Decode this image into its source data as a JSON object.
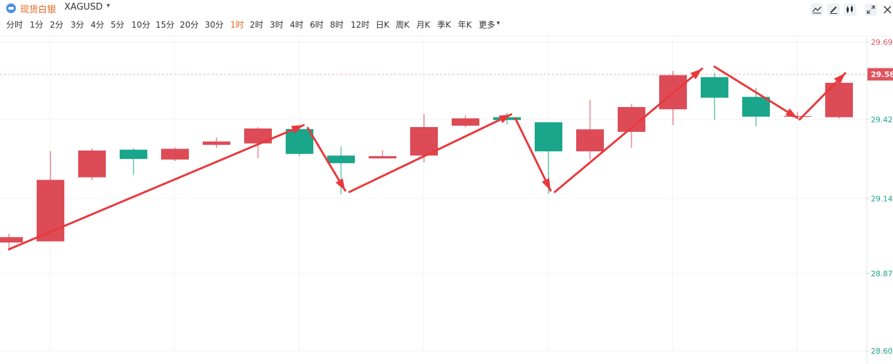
{
  "instrument": {
    "name": "现货白银",
    "symbol": "XAGUSD"
  },
  "toolbar": {
    "icons": [
      "line-tool-icon",
      "pen-tool-icon",
      "candlestick-icon",
      "expand-icon",
      "close-icon"
    ]
  },
  "periods": [
    "分时",
    "1分",
    "2分",
    "3分",
    "4分",
    "5分",
    "10分",
    "15分",
    "20分",
    "30分",
    "1时",
    "2时",
    "3时",
    "4时",
    "6时",
    "8时",
    "12时",
    "日K",
    "周K",
    "月K",
    "季K",
    "年K",
    "更多"
  ],
  "active_period": "1时",
  "colors": {
    "up": "#dd4b57",
    "down": "#1aa68a",
    "arrow": "#e8393c",
    "current_price_line": "#f4b5bb",
    "label_up": "#e0525c",
    "label_down": "#1aa68a"
  },
  "chart_data": {
    "type": "candlestick",
    "ylim": [
      28.6,
      29.694
    ],
    "y_ticks": [
      {
        "value": 29.694,
        "label": "29.694",
        "color": "up"
      },
      {
        "value": 29.42,
        "label": "29.42",
        "color": "down"
      },
      {
        "value": 29.14,
        "label": "29.14",
        "color": "down"
      },
      {
        "value": 28.874,
        "label": "28.874",
        "color": "down"
      },
      {
        "value": 28.6,
        "label": "28.60",
        "color": "down"
      }
    ],
    "current_price": {
      "value": 29.58,
      "label": "29.58"
    },
    "candles": [
      {
        "open": 28.984,
        "close": 29.003,
        "high": 29.015,
        "low": 28.955
      },
      {
        "open": 28.988,
        "close": 29.206,
        "high": 29.308,
        "low": 28.988
      },
      {
        "open": 29.215,
        "close": 29.31,
        "high": 29.318,
        "low": 29.205
      },
      {
        "open": 29.313,
        "close": 29.28,
        "high": 29.318,
        "low": 29.223
      },
      {
        "open": 29.278,
        "close": 29.316,
        "high": 29.321,
        "low": 29.272
      },
      {
        "open": 29.33,
        "close": 29.342,
        "high": 29.357,
        "low": 29.319
      },
      {
        "open": 29.335,
        "close": 29.388,
        "high": 29.393,
        "low": 29.282
      },
      {
        "open": 29.386,
        "close": 29.298,
        "high": 29.386,
        "low": 29.291
      },
      {
        "open": 29.292,
        "close": 29.265,
        "high": 29.324,
        "low": 29.155
      },
      {
        "open": 29.282,
        "close": 29.29,
        "high": 29.31,
        "low": 29.282
      },
      {
        "open": 29.292,
        "close": 29.393,
        "high": 29.44,
        "low": 29.268
      },
      {
        "open": 29.398,
        "close": 29.424,
        "high": 29.434,
        "low": 29.392
      },
      {
        "open": 29.428,
        "close": 29.418,
        "high": 29.444,
        "low": 29.402
      },
      {
        "open": 29.41,
        "close": 29.307,
        "high": 29.41,
        "low": 29.157
      },
      {
        "open": 29.307,
        "close": 29.385,
        "high": 29.49,
        "low": 29.278
      },
      {
        "open": 29.376,
        "close": 29.464,
        "high": 29.475,
        "low": 29.32
      },
      {
        "open": 29.456,
        "close": 29.577,
        "high": 29.592,
        "low": 29.4
      },
      {
        "open": 29.57,
        "close": 29.497,
        "high": 29.585,
        "low": 29.418
      },
      {
        "open": 29.5,
        "close": 29.43,
        "high": 29.532,
        "low": 29.395
      },
      {
        "open": 29.432,
        "close": 29.432,
        "high": 29.446,
        "low": 29.423
      },
      {
        "open": 29.428,
        "close": 29.55,
        "high": 29.55,
        "low": 29.423
      }
    ],
    "arrows": [
      {
        "from": [
          0,
          28.96
        ],
        "to": [
          7.1,
          29.4
        ]
      },
      {
        "from": [
          7.2,
          29.39
        ],
        "to": [
          8.1,
          29.168
        ]
      },
      {
        "from": [
          8.2,
          29.163
        ],
        "to": [
          12.1,
          29.438
        ]
      },
      {
        "from": [
          12.2,
          29.424
        ],
        "to": [
          13.05,
          29.168
        ]
      },
      {
        "from": [
          13.15,
          29.163
        ],
        "to": [
          16.7,
          29.6
        ]
      },
      {
        "from": [
          17.0,
          29.607
        ],
        "to": [
          19.0,
          29.425
        ]
      },
      {
        "from": [
          19.05,
          29.42
        ],
        "to": [
          20.15,
          29.584
        ]
      }
    ]
  }
}
